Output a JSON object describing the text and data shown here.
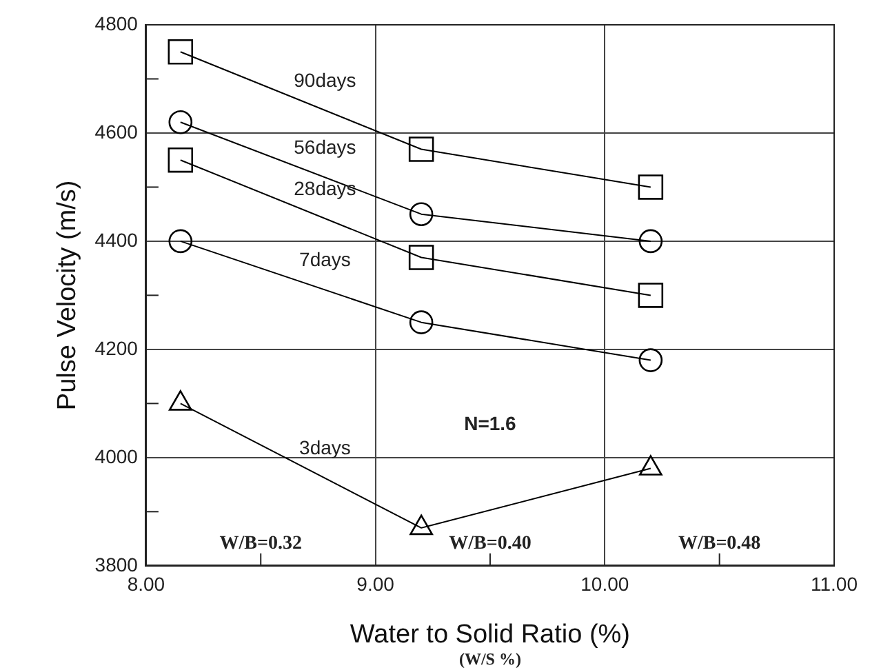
{
  "chart_data": {
    "type": "line",
    "xlabel": "Water to Solid Ratio (%)",
    "ylabel": "Pulse Velocity (m/s)",
    "xlim": [
      8,
      11
    ],
    "xticks": [
      {
        "value": 8,
        "label": "8.00"
      },
      {
        "value": 8.5,
        "label": null
      },
      {
        "value": 9,
        "label": "9.00"
      },
      {
        "value": 9.5,
        "label": null
      },
      {
        "value": 10,
        "label": "10.00"
      },
      {
        "value": 10.5,
        "label": null
      },
      {
        "value": 11,
        "label": "11.00"
      }
    ],
    "ylim": [
      3800,
      4800
    ],
    "yticks": [
      3800,
      {
        "value": 3900,
        "label": null
      },
      4000,
      {
        "value": 4100,
        "label": null
      },
      4200,
      {
        "value": 4300,
        "label": null
      },
      4400,
      {
        "value": 4500,
        "label": null
      },
      4600,
      {
        "value": 4700,
        "label": null
      },
      4800
    ],
    "grid": true,
    "legend": false,
    "line_style": "solid",
    "x": [
      8.15,
      9.2,
      10.2
    ],
    "series": [
      {
        "name": "90days",
        "color": "#000000",
        "marker": "square",
        "values": [
          4750,
          4570,
          4500
        ]
      },
      {
        "name": "56days",
        "color": "#000000",
        "marker": "circle",
        "values": [
          4620,
          4450,
          4400
        ]
      },
      {
        "name": "28days",
        "color": "#000000",
        "marker": "square",
        "values": [
          4550,
          4370,
          4300
        ]
      },
      {
        "name": "7days",
        "color": "#000000",
        "marker": "circle",
        "values": [
          4400,
          4250,
          4180
        ]
      },
      {
        "name": "3days",
        "color": "#000000",
        "marker": "triangle",
        "values": [
          4100,
          3870,
          3980
        ]
      }
    ],
    "annotations": [
      "W/B=0.32",
      "W/B=0.40",
      "W/B=0.48",
      "N=1.6",
      "(W/S %)"
    ]
  }
}
